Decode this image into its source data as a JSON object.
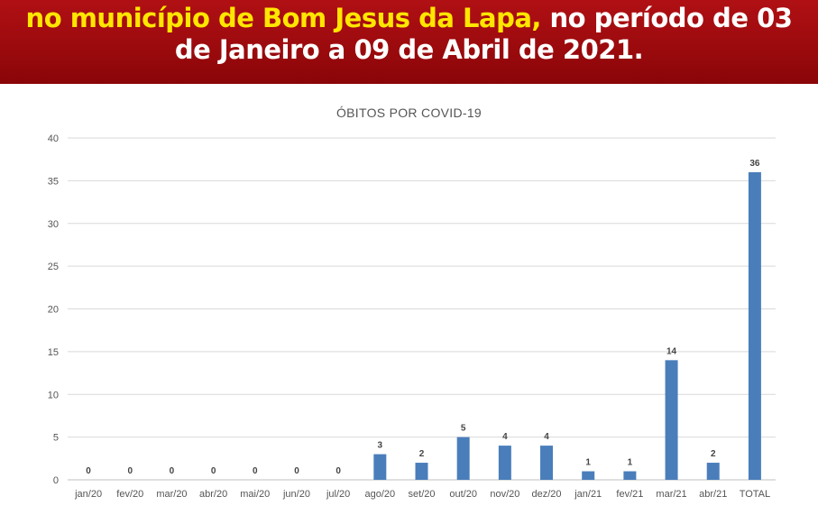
{
  "banner": {
    "line1_highlight": "no município de Bom Jesus da Lapa,",
    "line1_rest": " no período de 03",
    "line2": "de Janeiro a 09 de Abril de 2021."
  },
  "colors": {
    "banner": "#9a0a0d",
    "highlight": "#ffe600",
    "bar": "#4a7ebb"
  },
  "chart_data": {
    "type": "bar",
    "title": "ÓBITOS POR COVID-19",
    "categories": [
      "jan/20",
      "fev/20",
      "mar/20",
      "abr/20",
      "mai/20",
      "jun/20",
      "jul/20",
      "ago/20",
      "set/20",
      "out/20",
      "nov/20",
      "dez/20",
      "jan/21",
      "fev/21",
      "mar/21",
      "abr/21",
      "TOTAL"
    ],
    "values": [
      0,
      0,
      0,
      0,
      0,
      0,
      0,
      3,
      2,
      5,
      4,
      4,
      1,
      1,
      14,
      2,
      36
    ],
    "ylim": [
      0,
      40
    ],
    "yticks": [
      0,
      5,
      10,
      15,
      20,
      25,
      30,
      35,
      40
    ],
    "grid": true,
    "xlabel": "",
    "ylabel": ""
  }
}
